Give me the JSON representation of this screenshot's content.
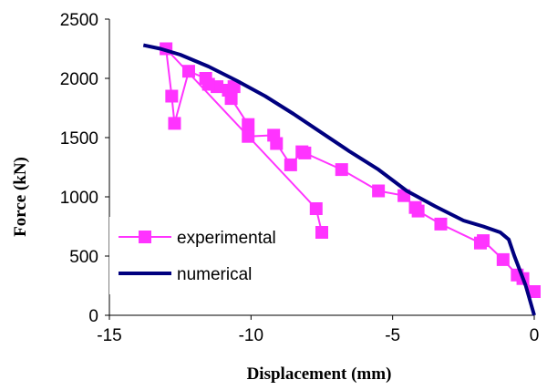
{
  "chart_data": {
    "type": "line",
    "title": "",
    "xlabel": "Displacement (mm)",
    "ylabel": "Force (kN)",
    "xlim": [
      -15,
      0
    ],
    "ylim": [
      0,
      2500
    ],
    "xticks": [
      -15,
      -10,
      -5,
      0
    ],
    "yticks": [
      0,
      500,
      1000,
      1500,
      2000,
      2500
    ],
    "x_tick_labels": [
      "-15",
      "-10",
      "-5",
      "0"
    ],
    "y_tick_labels": [
      "0",
      "500",
      "1000",
      "1500",
      "2000",
      "2500"
    ],
    "grid": false,
    "legend_position": "bottom-left",
    "series": [
      {
        "name": "experimental",
        "color": "#ff33ff",
        "marker": "square",
        "points": [
          [
            0.0,
            200
          ],
          [
            -0.4,
            310
          ],
          [
            -0.6,
            340
          ],
          [
            -1.1,
            470
          ],
          [
            -1.8,
            630
          ],
          [
            -1.9,
            610
          ],
          [
            -3.3,
            770
          ],
          [
            -4.1,
            880
          ],
          [
            -4.2,
            910
          ],
          [
            -4.6,
            1010
          ],
          [
            -5.5,
            1050
          ],
          [
            -6.8,
            1230
          ],
          [
            -8.1,
            1370
          ],
          [
            -8.2,
            1380
          ],
          [
            -8.6,
            1270
          ],
          [
            -9.1,
            1450
          ],
          [
            -9.2,
            1520
          ],
          [
            -10.1,
            1510
          ],
          [
            -10.1,
            1610
          ],
          [
            -10.7,
            1830
          ],
          [
            -10.8,
            1900
          ],
          [
            -10.6,
            1930
          ],
          [
            -11.2,
            1930
          ],
          [
            -11.5,
            1950
          ],
          [
            -11.6,
            2000
          ],
          [
            -12.2,
            2060
          ],
          [
            -12.7,
            1620
          ],
          [
            -12.8,
            1850
          ],
          [
            -13.0,
            2250
          ],
          [
            -7.7,
            900
          ],
          [
            -7.5,
            700
          ]
        ]
      },
      {
        "name": "numerical",
        "color": "#00007f",
        "marker": "none",
        "points": [
          [
            0.0,
            0
          ],
          [
            -0.3,
            250
          ],
          [
            -0.7,
            500
          ],
          [
            -0.9,
            640
          ],
          [
            -1.2,
            700
          ],
          [
            -1.8,
            750
          ],
          [
            -2.5,
            800
          ],
          [
            -3.5,
            920
          ],
          [
            -4.5,
            1050
          ],
          [
            -5.5,
            1230
          ],
          [
            -6.5,
            1380
          ],
          [
            -7.5,
            1540
          ],
          [
            -8.5,
            1700
          ],
          [
            -9.5,
            1850
          ],
          [
            -10.5,
            1980
          ],
          [
            -11.5,
            2100
          ],
          [
            -12.5,
            2200
          ],
          [
            -13.2,
            2250
          ],
          [
            -13.8,
            2280
          ]
        ]
      }
    ]
  }
}
